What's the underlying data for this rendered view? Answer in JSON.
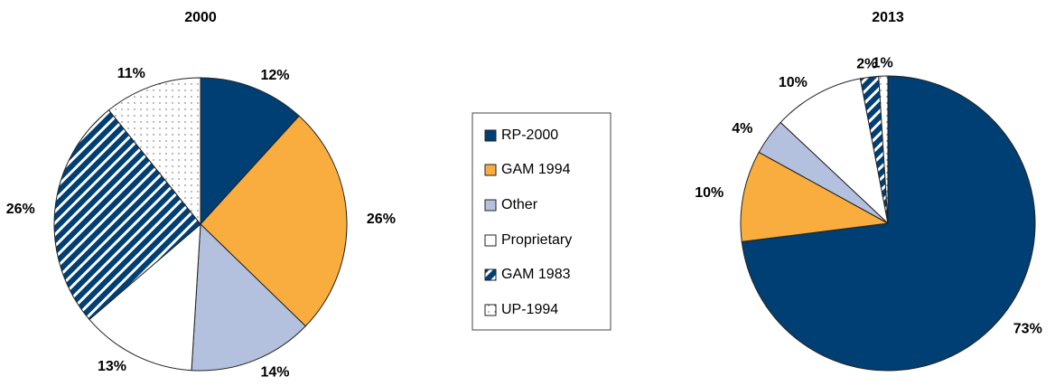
{
  "chart_data": [
    {
      "type": "pie",
      "title": "2000",
      "categories": [
        "RP-2000",
        "GAM 1994",
        "Other",
        "Proprietary",
        "GAM 1983",
        "UP-1994"
      ],
      "values": [
        12,
        26,
        14,
        13,
        26,
        11
      ],
      "value_labels": [
        "12%",
        "26%",
        "14%",
        "13%",
        "26%",
        "11%"
      ],
      "colors": [
        "#003f73",
        "#f9ad3e",
        "#b3c0de",
        "#ffffff",
        "#003f73",
        "#ffffff"
      ],
      "patterns": [
        null,
        null,
        null,
        null,
        "hatch",
        "dots"
      ]
    },
    {
      "type": "pie",
      "title": "2013",
      "categories": [
        "RP-2000",
        "GAM 1994",
        "Other",
        "Proprietary",
        "GAM 1983",
        "UP-1994"
      ],
      "values": [
        73,
        10,
        4,
        10,
        2,
        1
      ],
      "value_labels": [
        "73%",
        "10%",
        "4%",
        "10%",
        "2%",
        "1%"
      ],
      "colors": [
        "#003f73",
        "#f9ad3e",
        "#b3c0de",
        "#ffffff",
        "#003f73",
        "#ffffff"
      ],
      "patterns": [
        null,
        null,
        null,
        null,
        "hatch",
        "dots"
      ]
    }
  ]
}
